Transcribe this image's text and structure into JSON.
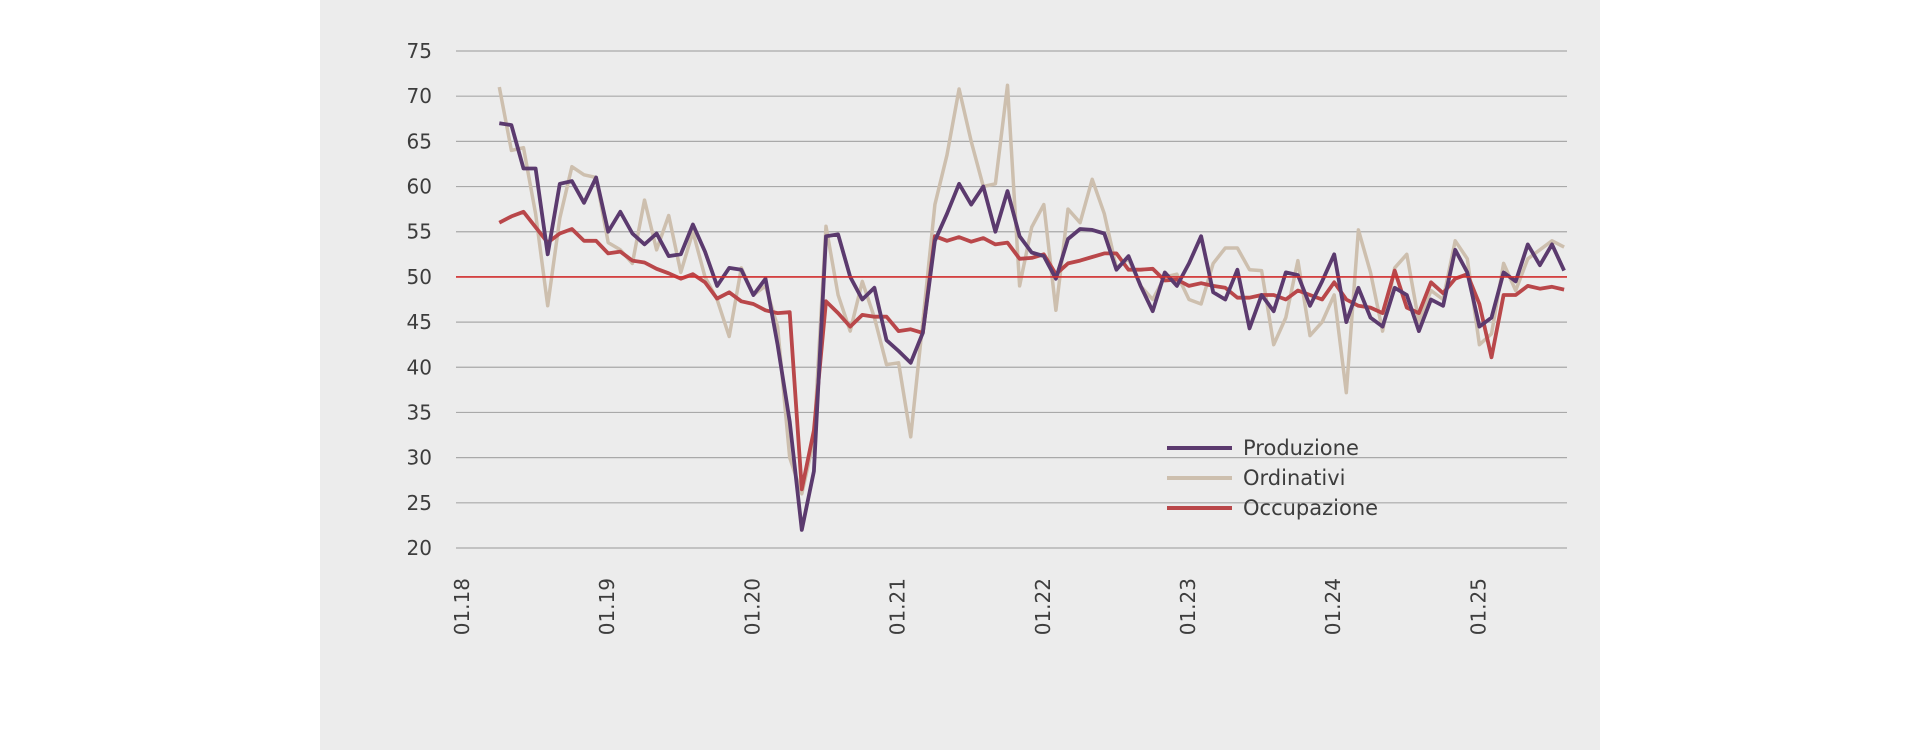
{
  "chart_data": {
    "type": "line",
    "title": "",
    "xlabel": "",
    "ylabel": "",
    "ylim": [
      20,
      75
    ],
    "yticks": [
      75,
      70,
      65,
      60,
      55,
      50,
      45,
      40,
      35,
      30,
      25,
      20
    ],
    "xticks": [
      "01.18",
      "01.19",
      "01.20",
      "01.21",
      "01.22",
      "01.23",
      "01.24",
      "01.25"
    ],
    "x_range_months": [
      0,
      91
    ],
    "reference_line": {
      "value": 50,
      "color": "#d32f2f"
    },
    "grid": true,
    "legend_position": "lower-right",
    "series": [
      {
        "name": "Produzione",
        "color": "#5b3a6e",
        "start_month": 3,
        "values": [
          67.0,
          66.8,
          62.0,
          62.0,
          52.5,
          60.3,
          60.6,
          58.2,
          61.0,
          55.0,
          57.2,
          54.8,
          53.6,
          54.8,
          52.3,
          52.5,
          55.8,
          52.8,
          49.0,
          51.0,
          50.8,
          48.0,
          49.8,
          42.5,
          34.0,
          22.0,
          28.5,
          54.5,
          54.7,
          50.0,
          47.5,
          48.8,
          43.0,
          41.8,
          40.5,
          43.8,
          54.0,
          57.0,
          60.3,
          58.0,
          60.0,
          55.0,
          59.5,
          54.5,
          52.7,
          52.3,
          49.8,
          54.2,
          55.3,
          55.2,
          54.8,
          50.8,
          52.3,
          49.0,
          46.2,
          50.5,
          49.0,
          51.5,
          54.5,
          48.3,
          47.5,
          50.8,
          44.3,
          48.0,
          46.2,
          50.5,
          50.2,
          46.8,
          49.5,
          52.5,
          45.0,
          48.8,
          45.5,
          44.5,
          48.8,
          48.0,
          44.0,
          47.5,
          46.8,
          53.0,
          50.5,
          44.5,
          45.5,
          50.5,
          49.5,
          53.6,
          51.3,
          53.6,
          50.7
        ]
      },
      {
        "name": "Ordinativi",
        "color": "#cdbfae",
        "start_month": 3,
        "values": [
          71.0,
          64.0,
          64.3,
          57.0,
          46.8,
          56.5,
          62.2,
          61.3,
          61.0,
          53.8,
          53.0,
          51.5,
          58.5,
          53.0,
          56.8,
          50.5,
          55.0,
          50.0,
          47.5,
          43.4,
          51.0,
          48.0,
          49.0,
          44.5,
          30.0,
          26.0,
          32.0,
          55.6,
          48.0,
          44.0,
          49.5,
          45.5,
          40.3,
          40.5,
          32.3,
          45.0,
          58.0,
          63.5,
          70.8,
          65.0,
          60.0,
          60.3,
          71.2,
          49.0,
          55.5,
          58.0,
          46.3,
          57.5,
          56.0,
          60.8,
          57.0,
          51.0,
          52.0,
          49.0,
          47.5,
          50.0,
          50.3,
          47.5,
          47.0,
          51.5,
          53.2,
          53.2,
          50.8,
          50.7,
          42.5,
          45.5,
          51.8,
          43.5,
          45.0,
          48.0,
          37.2,
          55.2,
          50.5,
          44.0,
          51.0,
          52.5,
          45.0,
          48.5,
          47.5,
          54.0,
          52.0,
          42.5,
          43.7,
          51.5,
          48.5,
          52.0,
          53.0,
          54.0,
          53.3
        ]
      },
      {
        "name": "Occupazione",
        "color": "#b9474a",
        "start_month": 3,
        "values": [
          56.0,
          56.7,
          57.2,
          55.5,
          53.8,
          54.8,
          55.3,
          54.0,
          54.0,
          52.6,
          52.8,
          51.8,
          51.6,
          50.9,
          50.4,
          49.8,
          50.3,
          49.4,
          47.6,
          48.3,
          47.3,
          47.0,
          46.3,
          46.0,
          46.1,
          26.5,
          33.0,
          47.3,
          46.0,
          44.5,
          45.8,
          45.6,
          45.6,
          44.0,
          44.2,
          43.8,
          54.5,
          54.0,
          54.4,
          53.9,
          54.3,
          53.6,
          53.8,
          52.0,
          52.1,
          52.5,
          50.3,
          51.5,
          51.8,
          52.2,
          52.6,
          52.6,
          50.8,
          50.8,
          50.9,
          49.6,
          49.7,
          49.0,
          49.3,
          49.0,
          48.8,
          47.7,
          47.7,
          48.0,
          48.0,
          47.5,
          48.5,
          48.0,
          47.5,
          49.4,
          47.5,
          46.8,
          46.6,
          46.0,
          50.7,
          46.6,
          46.0,
          49.4,
          48.2,
          49.8,
          50.3,
          47.0,
          41.1,
          48.0,
          48.0,
          49.0,
          48.7,
          48.9,
          48.6
        ]
      }
    ]
  }
}
